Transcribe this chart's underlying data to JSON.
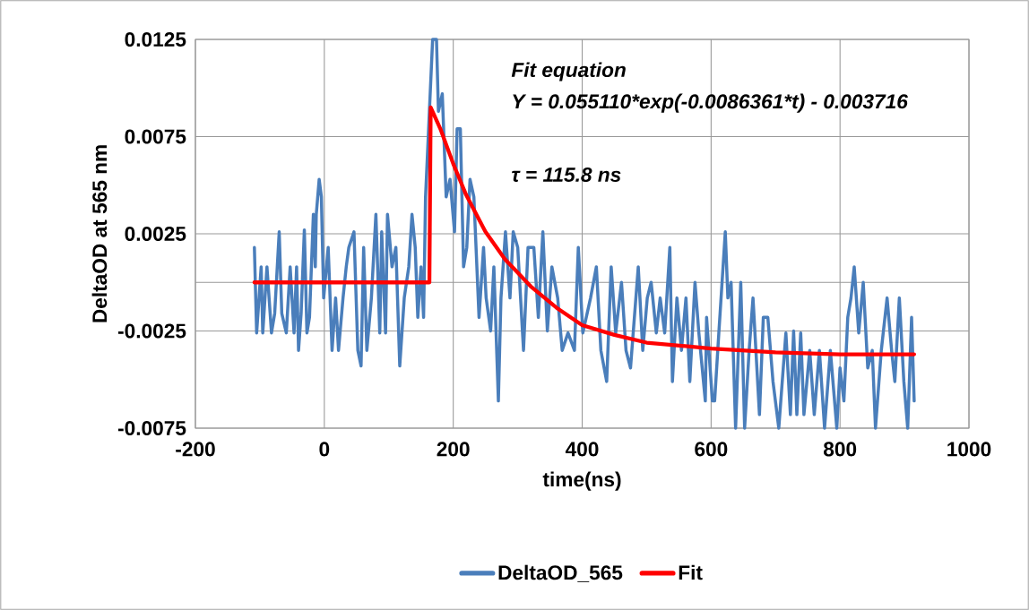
{
  "chart_data": {
    "type": "line",
    "xlabel": "time(ns)",
    "ylabel": "DeltaOD at 565 nm",
    "annotations": [
      "Fit equation",
      "Y = 0.055110*exp(-0.0086361*t) - 0.003716",
      "τ  = 115.8 ns"
    ],
    "xlim": [
      -200,
      1000
    ],
    "xticks": [
      -200,
      0,
      200,
      400,
      600,
      800,
      1000
    ],
    "ylim": [
      -0.0075,
      0.0125
    ],
    "yticks": [
      -0.0075,
      -0.0025,
      {
        "value": 0,
        "label": null
      },
      0.0025,
      0.0075,
      0.0125
    ],
    "grid": true,
    "legend": "bottom",
    "marker": "none",
    "line_style": "solid",
    "series": [
      {
        "name": "DeltaOD_565",
        "color": "#4a7ebb",
        "x": [
          -108.5,
          -105,
          -98,
          -95.5,
          -89,
          -82,
          -77,
          -70,
          -66,
          -59,
          -53,
          -47,
          -43,
          -40,
          -36,
          -31,
          -27,
          -23,
          -17,
          -14,
          -12.5,
          -8,
          -4.6,
          -1,
          6,
          12,
          17.5,
          22,
          29,
          34,
          38,
          46,
          52,
          57,
          61,
          66,
          73,
          80,
          86,
          89,
          95,
          98,
          105,
          111,
          117,
          124,
          131,
          136,
          141,
          145,
          150,
          154,
          157,
          163,
          168,
          174,
          177,
          183,
          189,
          195,
          202,
          206,
          211,
          216,
          221,
          226,
          232,
          240,
          247,
          251,
          258,
          263,
          270,
          274,
          281,
          288,
          293,
          300,
          309,
          316,
          325,
          332,
          339,
          346,
          353,
          362,
          369,
          378,
          388,
          394,
          401,
          413,
          422,
          429,
          438,
          445,
          452,
          461,
          468,
          475,
          487,
          494,
          501,
          507,
          515,
          521,
          528,
          536,
          540,
          547,
          554,
          561,
          567,
          575,
          581,
          591,
          593,
          602,
          605.5,
          612,
          622,
          626,
          631,
          638,
          646,
          652,
          659,
          665,
          675,
          681,
          688,
          696,
          705,
          716,
          723,
          728,
          733,
          739,
          744,
          753,
          760,
          768,
          776,
          785,
          795,
          800,
          806,
          812,
          817,
          822,
          829,
          836,
          843,
          850,
          855,
          864,
          873,
          880,
          885,
          892,
          899,
          905,
          911,
          915
        ],
        "values": [
          0.0018,
          -0.0026,
          0.0008,
          -0.0026,
          0.0008,
          -0.0026,
          -0.0016,
          0.0026,
          -0.0016,
          -0.0026,
          0.0008,
          -0.0026,
          0.0008,
          -0.0035,
          -0.0016,
          0.0027,
          -0.0026,
          -0.0018,
          0.0035,
          0.0008,
          0.0035,
          0.0053,
          0.0044,
          -0.0008,
          0.0018,
          -0.0035,
          -0.0008,
          -0.0035,
          -0.0008,
          0.0008,
          0.0018,
          0.0026,
          -0.0035,
          -0.0043,
          0.0018,
          -0.0035,
          -0.0008,
          0.0035,
          -0.0026,
          0.0026,
          -0.0026,
          0.0035,
          0.0008,
          0.0018,
          -0.0043,
          -0.0008,
          0.0008,
          0.0035,
          0.0018,
          -0.0018,
          0.0008,
          -0.0018,
          0.0044,
          0.0088,
          0.0125,
          0.0125,
          0.0088,
          0.0097,
          0.0044,
          0.0053,
          0.0026,
          0.0079,
          0.0079,
          0.0008,
          0.0018,
          0.0053,
          0.0044,
          -0.0018,
          0.0018,
          -0.0008,
          -0.0025,
          0.0008,
          -0.0061,
          -0.0008,
          0.0026,
          -0.0008,
          0.0026,
          0.0018,
          -0.0035,
          0.0018,
          0.0018,
          -0.0018,
          0.0026,
          -0.0025,
          0.0008,
          -0.0008,
          -0.0035,
          -0.0026,
          -0.0035,
          0.0018,
          -0.0026,
          -0.0008,
          0.0008,
          -0.0035,
          -0.0051,
          0.0008,
          -0.0026,
          0.0,
          -0.0035,
          -0.0044,
          0.0008,
          -0.0035,
          -0.0008,
          0.0,
          -0.0026,
          -0.0008,
          -0.0026,
          0.0018,
          -0.0051,
          -0.0008,
          -0.0035,
          -0.0008,
          -0.0051,
          0.0,
          -0.0026,
          -0.0061,
          -0.0018,
          -0.0061,
          -0.0061,
          -0.0026,
          0.0026,
          -0.0008,
          0.0,
          -0.0075,
          0.0,
          -0.0075,
          -0.0035,
          -0.0008,
          -0.0068,
          -0.0018,
          -0.0018,
          -0.0051,
          -0.0075,
          -0.0026,
          -0.0068,
          -0.0025,
          -0.0068,
          -0.0026,
          -0.0068,
          -0.0035,
          -0.0068,
          -0.0035,
          -0.0075,
          -0.0035,
          -0.0075,
          -0.0044,
          -0.0061,
          -0.0018,
          -0.0008,
          0.0008,
          -0.0026,
          0.0,
          -0.0044,
          -0.0035,
          -0.0075,
          -0.0035,
          -0.0008,
          -0.0035,
          -0.0051,
          -0.0008,
          -0.0051,
          -0.0075,
          -0.0018,
          -0.0061
        ]
      },
      {
        "name": "Fit",
        "color": "#ff0000",
        "x": [
          -108.5,
          163,
          165,
          180,
          200,
          220,
          250,
          280,
          320,
          360,
          400,
          450,
          500,
          600,
          700,
          800,
          915
        ],
        "values": [
          0,
          0,
          0.009,
          0.0079,
          0.0061,
          0.0045,
          0.0026,
          0.0012,
          -0.0002,
          -0.0013,
          -0.0022,
          -0.0027,
          -0.0031,
          -0.0034,
          -0.0036,
          -0.0037,
          -0.0037
        ]
      }
    ]
  }
}
